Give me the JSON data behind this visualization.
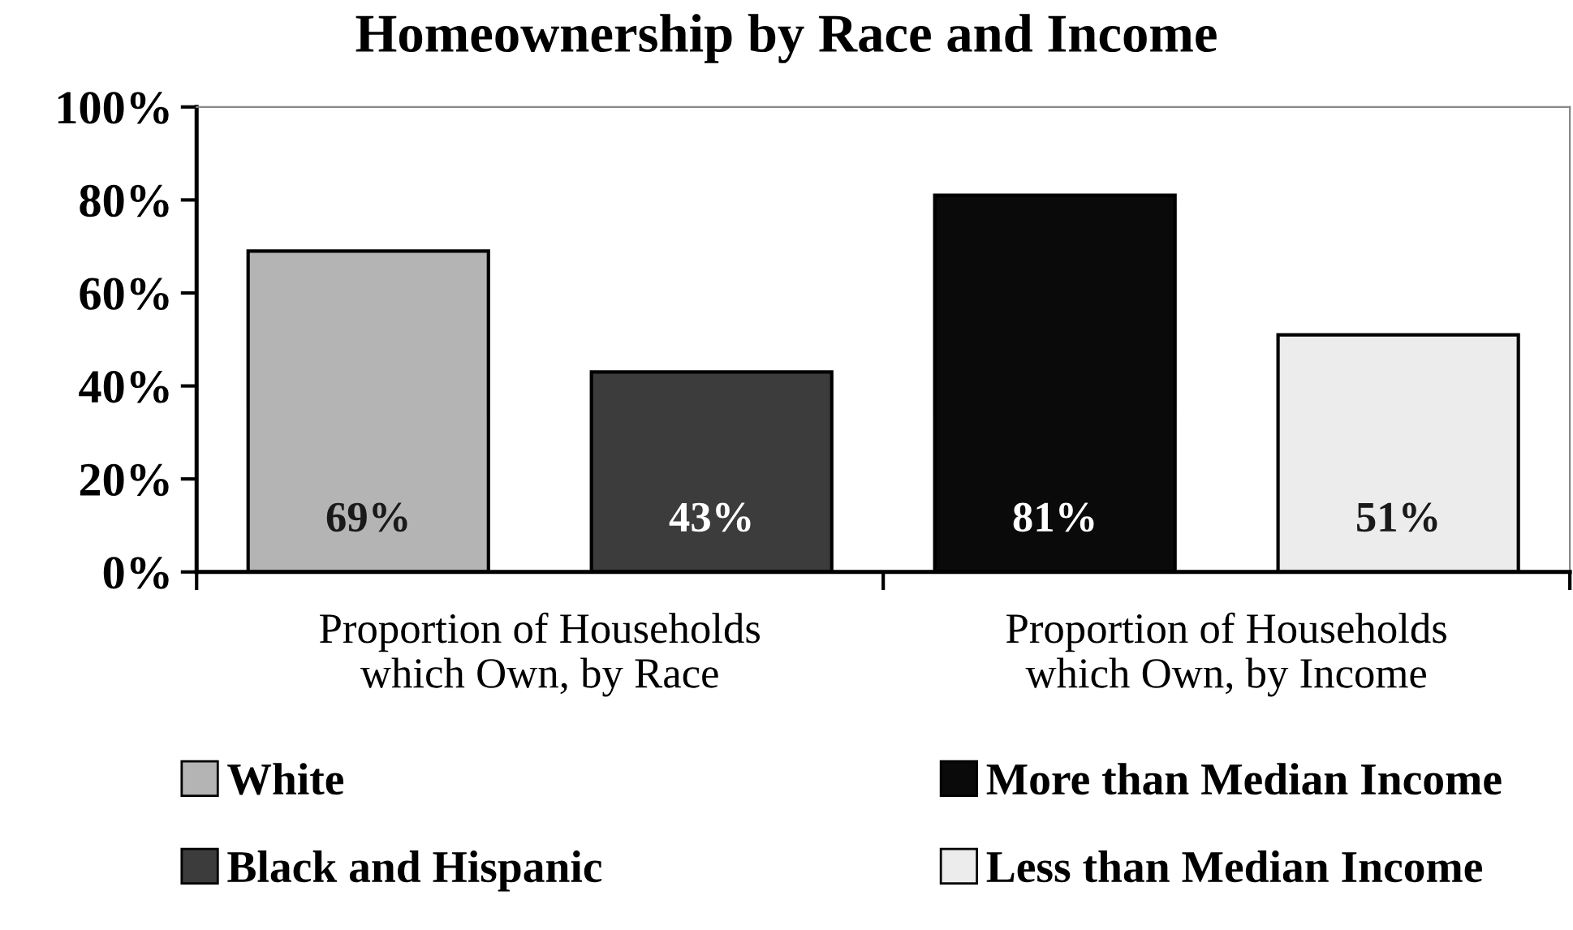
{
  "chart_data": {
    "type": "bar",
    "title": "Homeownership by Race and Income",
    "categories": [
      "Proportion of Households\nwhich Own, by Race",
      "Proportion of Households\nwhich Own, by Income"
    ],
    "series": [
      {
        "name": "White",
        "color": "#b4b4b4",
        "values": [
          69,
          null
        ],
        "value_labels": [
          "69%",
          null
        ]
      },
      {
        "name": "Black and Hispanic",
        "color": "#3c3c3c",
        "values": [
          43,
          null
        ],
        "value_labels": [
          "43%",
          null
        ]
      },
      {
        "name": "More than Median Income",
        "color": "#0a0a0a",
        "values": [
          null,
          81
        ],
        "value_labels": [
          null,
          "81%"
        ]
      },
      {
        "name": "Less than Median Income",
        "color": "#ececec",
        "values": [
          null,
          51
        ],
        "value_labels": [
          null,
          "51%"
        ]
      }
    ],
    "ylim": [
      0,
      100
    ],
    "yticks": [
      {
        "value": 0,
        "label": "0%"
      },
      {
        "value": 20,
        "label": "20%"
      },
      {
        "value": 40,
        "label": "40%"
      },
      {
        "value": 60,
        "label": "60%"
      },
      {
        "value": 80,
        "label": "80%"
      },
      {
        "value": 100,
        "label": "100%"
      }
    ],
    "grid": false,
    "legend": "bottom"
  }
}
